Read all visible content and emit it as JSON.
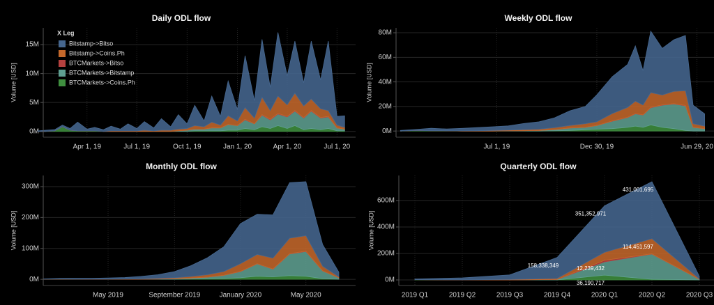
{
  "chart_data": [
    {
      "type": "area",
      "title": "Daily ODL flow",
      "y_label": "Volume [USD]",
      "legend_title": "X Leg",
      "grid": true,
      "x": [
        "2019-01-01",
        "2019-01-15",
        "2019-02-01",
        "2019-02-15",
        "2019-03-01",
        "2019-03-15",
        "2019-04-01",
        "2019-04-15",
        "2019-05-01",
        "2019-05-15",
        "2019-06-01",
        "2019-06-15",
        "2019-07-01",
        "2019-07-15",
        "2019-08-01",
        "2019-08-15",
        "2019-09-01",
        "2019-09-15",
        "2019-10-01",
        "2019-10-15",
        "2019-11-01",
        "2019-11-15",
        "2019-12-01",
        "2019-12-15",
        "2020-01-01",
        "2020-01-15",
        "2020-02-01",
        "2020-02-15",
        "2020-03-01",
        "2020-03-15",
        "2020-04-01",
        "2020-04-15",
        "2020-05-01",
        "2020-05-15",
        "2020-06-01",
        "2020-06-15",
        "2020-07-01",
        "2020-07-15"
      ],
      "xlim": [
        "2019-01-11",
        "2020-08-04"
      ],
      "xticks": [
        {
          "value": "2019-04-01",
          "label": "Apr 1, 19"
        },
        {
          "value": "2019-07-01",
          "label": "Jul 1, 19"
        },
        {
          "value": "2019-10-01",
          "label": "Oct 1, 19"
        },
        {
          "value": "2020-01-01",
          "label": "Jan 1, 20"
        },
        {
          "value": "2020-04-01",
          "label": "Apr 1, 20"
        },
        {
          "value": "2020-07-01",
          "label": "Jul 1, 20"
        }
      ],
      "ylim": [
        -1000000,
        17900000
      ],
      "yticks": [
        {
          "value": 0,
          "label": "0M"
        },
        {
          "value": 5000000,
          "label": "5M"
        },
        {
          "value": 10000000,
          "label": "10M"
        },
        {
          "value": 15000000,
          "label": "15M"
        }
      ],
      "series": [
        {
          "name": "Bitstamp->Bitso",
          "color": "#46678f",
          "values": [
            100000,
            200000,
            200000,
            300000,
            300000,
            1500000,
            300000,
            600000,
            300000,
            800000,
            300000,
            1200000,
            400000,
            1500000,
            500000,
            2000000,
            600000,
            2500000,
            800000,
            3500000,
            1000000,
            4500000,
            1500000,
            6000000,
            2000000,
            9000000,
            3000000,
            10000000,
            4000000,
            11000000,
            5000000,
            9000000,
            4000000,
            10000000,
            5000000,
            12000000,
            1500000,
            2000000
          ]
        },
        {
          "name": "Bitstamp->Coins.Ph",
          "color": "#c4682b",
          "values": [
            0,
            0,
            0,
            0,
            0,
            0,
            0,
            0,
            0,
            100000,
            100000,
            100000,
            100000,
            200000,
            100000,
            200000,
            200000,
            300000,
            300000,
            600000,
            400000,
            1000000,
            500000,
            1500000,
            800000,
            2000000,
            1000000,
            3000000,
            1500000,
            3000000,
            2000000,
            3000000,
            2000000,
            2000000,
            1500000,
            1000000,
            500000,
            300000
          ]
        },
        {
          "name": "BTCMarkets->Bitso",
          "color": "#b5413f",
          "values": [
            0,
            0,
            0,
            0,
            0,
            0,
            0,
            0,
            0,
            0,
            0,
            0,
            0,
            0,
            0,
            0,
            0,
            0,
            0,
            0,
            0,
            0,
            0,
            0,
            0,
            100000,
            0,
            100000,
            100000,
            100000,
            100000,
            100000,
            100000,
            100000,
            100000,
            100000,
            0,
            0
          ]
        },
        {
          "name": "BTCMarkets->Bitstamp",
          "color": "#5f9f91",
          "values": [
            0,
            0,
            0,
            0,
            0,
            0,
            0,
            0,
            0,
            0,
            0,
            0,
            0,
            0,
            0,
            0,
            0,
            100000,
            200000,
            300000,
            300000,
            500000,
            500000,
            1000000,
            800000,
            1500000,
            1000000,
            2000000,
            1500000,
            2000000,
            2000000,
            2500000,
            2000000,
            3000000,
            2000000,
            2000000,
            500000,
            300000
          ]
        },
        {
          "name": "BTCMarkets->Coins.Ph",
          "color": "#3f8f3f",
          "values": [
            0,
            0,
            100000,
            800000,
            200000,
            100000,
            100000,
            100000,
            0,
            0,
            0,
            0,
            0,
            0,
            0,
            0,
            0,
            0,
            0,
            100000,
            100000,
            100000,
            100000,
            200000,
            200000,
            500000,
            300000,
            800000,
            500000,
            1000000,
            500000,
            1000000,
            300000,
            500000,
            300000,
            500000,
            100000,
            100000
          ]
        }
      ]
    },
    {
      "type": "area",
      "title": "Weekly ODL flow",
      "y_label": "Volume [USD]",
      "grid": true,
      "x": [
        "2019-01-07",
        "2019-02-04",
        "2019-03-04",
        "2019-04-01",
        "2019-04-29",
        "2019-05-27",
        "2019-06-24",
        "2019-07-22",
        "2019-08-19",
        "2019-09-16",
        "2019-10-14",
        "2019-11-11",
        "2019-12-09",
        "2019-12-30",
        "2020-01-27",
        "2020-02-24",
        "2020-03-09",
        "2020-03-23",
        "2020-04-06",
        "2020-04-27",
        "2020-05-18",
        "2020-06-08",
        "2020-06-22",
        "2020-07-13"
      ],
      "xlim": [
        "2018-12-30",
        "2020-07-30"
      ],
      "xticks": [
        {
          "value": "2019-07-01",
          "label": "Jul 1, 19"
        },
        {
          "value": "2019-12-30",
          "label": "Dec 30, 19"
        },
        {
          "value": "2020-06-29",
          "label": "Jun 29, 20"
        }
      ],
      "ylim": [
        -5000000,
        84000000
      ],
      "yticks": [
        {
          "value": 0,
          "label": "0M"
        },
        {
          "value": 20000000,
          "label": "20M"
        },
        {
          "value": 40000000,
          "label": "40M"
        },
        {
          "value": 60000000,
          "label": "60M"
        },
        {
          "value": 80000000,
          "label": "80M"
        }
      ],
      "series": [
        {
          "color": "#46678f",
          "values": [
            500000,
            800000,
            2000000,
            1500000,
            2000000,
            2500000,
            3000000,
            3500000,
            5000000,
            6000000,
            8000000,
            12000000,
            14000000,
            22000000,
            30000000,
            35000000,
            45000000,
            28000000,
            50000000,
            38000000,
            42000000,
            45000000,
            15000000,
            10000000
          ]
        },
        {
          "color": "#c4682b",
          "values": [
            0,
            0,
            0,
            0,
            200000,
            300000,
            500000,
            500000,
            800000,
            1000000,
            1500000,
            2000000,
            3000000,
            3000000,
            6000000,
            8000000,
            10000000,
            8000000,
            12000000,
            8000000,
            10000000,
            12000000,
            3000000,
            2000000
          ]
        },
        {
          "color": "#b5413f",
          "values": [
            0,
            0,
            0,
            0,
            0,
            0,
            0,
            0,
            0,
            0,
            0,
            0,
            0,
            0,
            200000,
            200000,
            300000,
            200000,
            300000,
            300000,
            300000,
            300000,
            0,
            0
          ]
        },
        {
          "color": "#5f9f91",
          "values": [
            0,
            0,
            0,
            0,
            0,
            0,
            0,
            200000,
            300000,
            500000,
            1000000,
            2000000,
            2000000,
            3000000,
            6000000,
            8000000,
            10000000,
            10000000,
            14000000,
            18000000,
            20000000,
            20000000,
            3000000,
            2000000
          ]
        },
        {
          "color": "#3f8f3f",
          "values": [
            0,
            500000,
            300000,
            200000,
            0,
            0,
            0,
            0,
            0,
            0,
            200000,
            500000,
            1000000,
            1500000,
            2000000,
            3000000,
            4000000,
            3000000,
            5000000,
            3000000,
            2000000,
            500000,
            0,
            0
          ]
        }
      ]
    },
    {
      "type": "area",
      "title": "Monthly ODL flow",
      "y_label": "Volume [USD]",
      "grid": true,
      "x": [
        "2019-01",
        "2019-02",
        "2019-03",
        "2019-04",
        "2019-05",
        "2019-06",
        "2019-07",
        "2019-08",
        "2019-09",
        "2019-10",
        "2019-11",
        "2019-12",
        "2020-01",
        "2020-02",
        "2020-03",
        "2020-04",
        "2020-05",
        "2020-06",
        "2020-07"
      ],
      "xlim": [
        "2019-01",
        "2020-08"
      ],
      "xticks": [
        {
          "value": "2019-05",
          "label": "May 2019"
        },
        {
          "value": "2019-09",
          "label": "September 2019"
        },
        {
          "value": "2020-01",
          "label": "January 2020"
        },
        {
          "value": "2020-05",
          "label": "May 2020"
        }
      ],
      "ylim": [
        -20000000,
        336000000
      ],
      "yticks": [
        {
          "value": 0,
          "label": "0M"
        },
        {
          "value": 100000000,
          "label": "100M"
        },
        {
          "value": 200000000,
          "label": "200M"
        },
        {
          "value": 300000000,
          "label": "300M"
        }
      ],
      "series": [
        {
          "color": "#46678f",
          "values": [
            1000000,
            2000000,
            3000000,
            3000000,
            4000000,
            5000000,
            8000000,
            12000000,
            20000000,
            35000000,
            55000000,
            80000000,
            130000000,
            130000000,
            140000000,
            180000000,
            175000000,
            70000000,
            15000000
          ]
        },
        {
          "color": "#c4682b",
          "values": [
            0,
            0,
            0,
            200000,
            500000,
            1000000,
            1000000,
            2000000,
            3000000,
            5000000,
            8000000,
            12000000,
            25000000,
            30000000,
            35000000,
            50000000,
            50000000,
            15000000,
            3000000
          ]
        },
        {
          "color": "#b5413f",
          "values": [
            0,
            0,
            0,
            0,
            0,
            0,
            0,
            0,
            0,
            0,
            0,
            0,
            500000,
            500000,
            500000,
            1000000,
            1000000,
            500000,
            0
          ]
        },
        {
          "color": "#5f9f91",
          "values": [
            0,
            0,
            0,
            0,
            0,
            0,
            500000,
            1000000,
            2000000,
            3000000,
            5000000,
            10000000,
            20000000,
            40000000,
            25000000,
            70000000,
            80000000,
            25000000,
            5000000
          ]
        },
        {
          "color": "#3f8f3f",
          "values": [
            500000,
            1000000,
            500000,
            300000,
            0,
            0,
            0,
            0,
            0,
            1000000,
            2000000,
            3000000,
            5000000,
            10000000,
            8000000,
            12000000,
            10000000,
            2000000,
            0
          ]
        }
      ]
    },
    {
      "type": "area",
      "title": "Quarterly ODL flow",
      "y_label": "Volume [USD]",
      "grid": true,
      "categories": [
        "2019 Q1",
        "2019 Q2",
        "2019 Q3",
        "2019 Q4",
        "2020 Q1",
        "2020 Q2",
        "2020 Q3"
      ],
      "ylim": [
        -42000000,
        789000000
      ],
      "yticks": [
        {
          "value": 0,
          "label": "0M"
        },
        {
          "value": 200000000,
          "label": "200M"
        },
        {
          "value": 400000000,
          "label": "400M"
        },
        {
          "value": 600000000,
          "label": "600M"
        }
      ],
      "series": [
        {
          "color": "#46678f",
          "values": [
            5000000,
            15000000,
            35000000,
            158338349,
            351352971,
            431001695,
            20000000
          ],
          "value_labels": [
            null,
            null,
            null,
            "158,338,349",
            "351,352,971",
            "431,001,695",
            null
          ]
        },
        {
          "color": "#c4682b",
          "values": [
            0,
            1000000,
            3000000,
            8000000,
            60000000,
            114451597,
            3000000
          ],
          "value_labels": [
            null,
            null,
            null,
            null,
            null,
            "114,451,597",
            null
          ]
        },
        {
          "color": "#b5413f",
          "values": [
            0,
            0,
            0,
            0,
            12239432,
            2000000,
            0
          ],
          "value_labels": [
            null,
            null,
            null,
            null,
            "12,239,432",
            null,
            null
          ]
        },
        {
          "color": "#5f9f91",
          "values": [
            0,
            0,
            0,
            3000000,
            100000000,
            190000000,
            5000000
          ]
        },
        {
          "color": "#3f8f3f",
          "values": [
            2000000,
            0,
            0,
            0,
            36190717,
            5000000,
            0
          ],
          "value_labels": [
            null,
            null,
            null,
            null,
            "36,190,717",
            null,
            null
          ]
        }
      ]
    }
  ]
}
